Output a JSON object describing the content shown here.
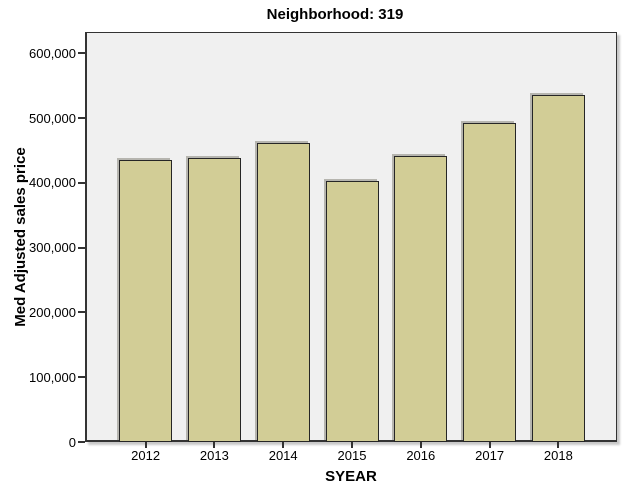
{
  "chart_data": {
    "type": "bar",
    "title": "Neighborhood: 319",
    "xlabel": "SYEAR",
    "ylabel": "Med Adjusted sales price",
    "categories": [
      "2012",
      "2013",
      "2014",
      "2015",
      "2016",
      "2017",
      "2018"
    ],
    "values": [
      436000,
      438000,
      461000,
      403000,
      442000,
      492000,
      536000
    ],
    "ylim": [
      0,
      633000
    ],
    "yticks": [
      0,
      100000,
      200000,
      300000,
      400000,
      500000,
      600000
    ],
    "ytick_labels": [
      "0",
      "100,000",
      "200,000",
      "300,000",
      "400,000",
      "500,000",
      "600,000"
    ],
    "grid": false,
    "legend": "none",
    "bar_fill": "#D2CD96",
    "bar_border": "#262626",
    "plot_background": "#F0F0F0",
    "frame_color": "#333333"
  }
}
